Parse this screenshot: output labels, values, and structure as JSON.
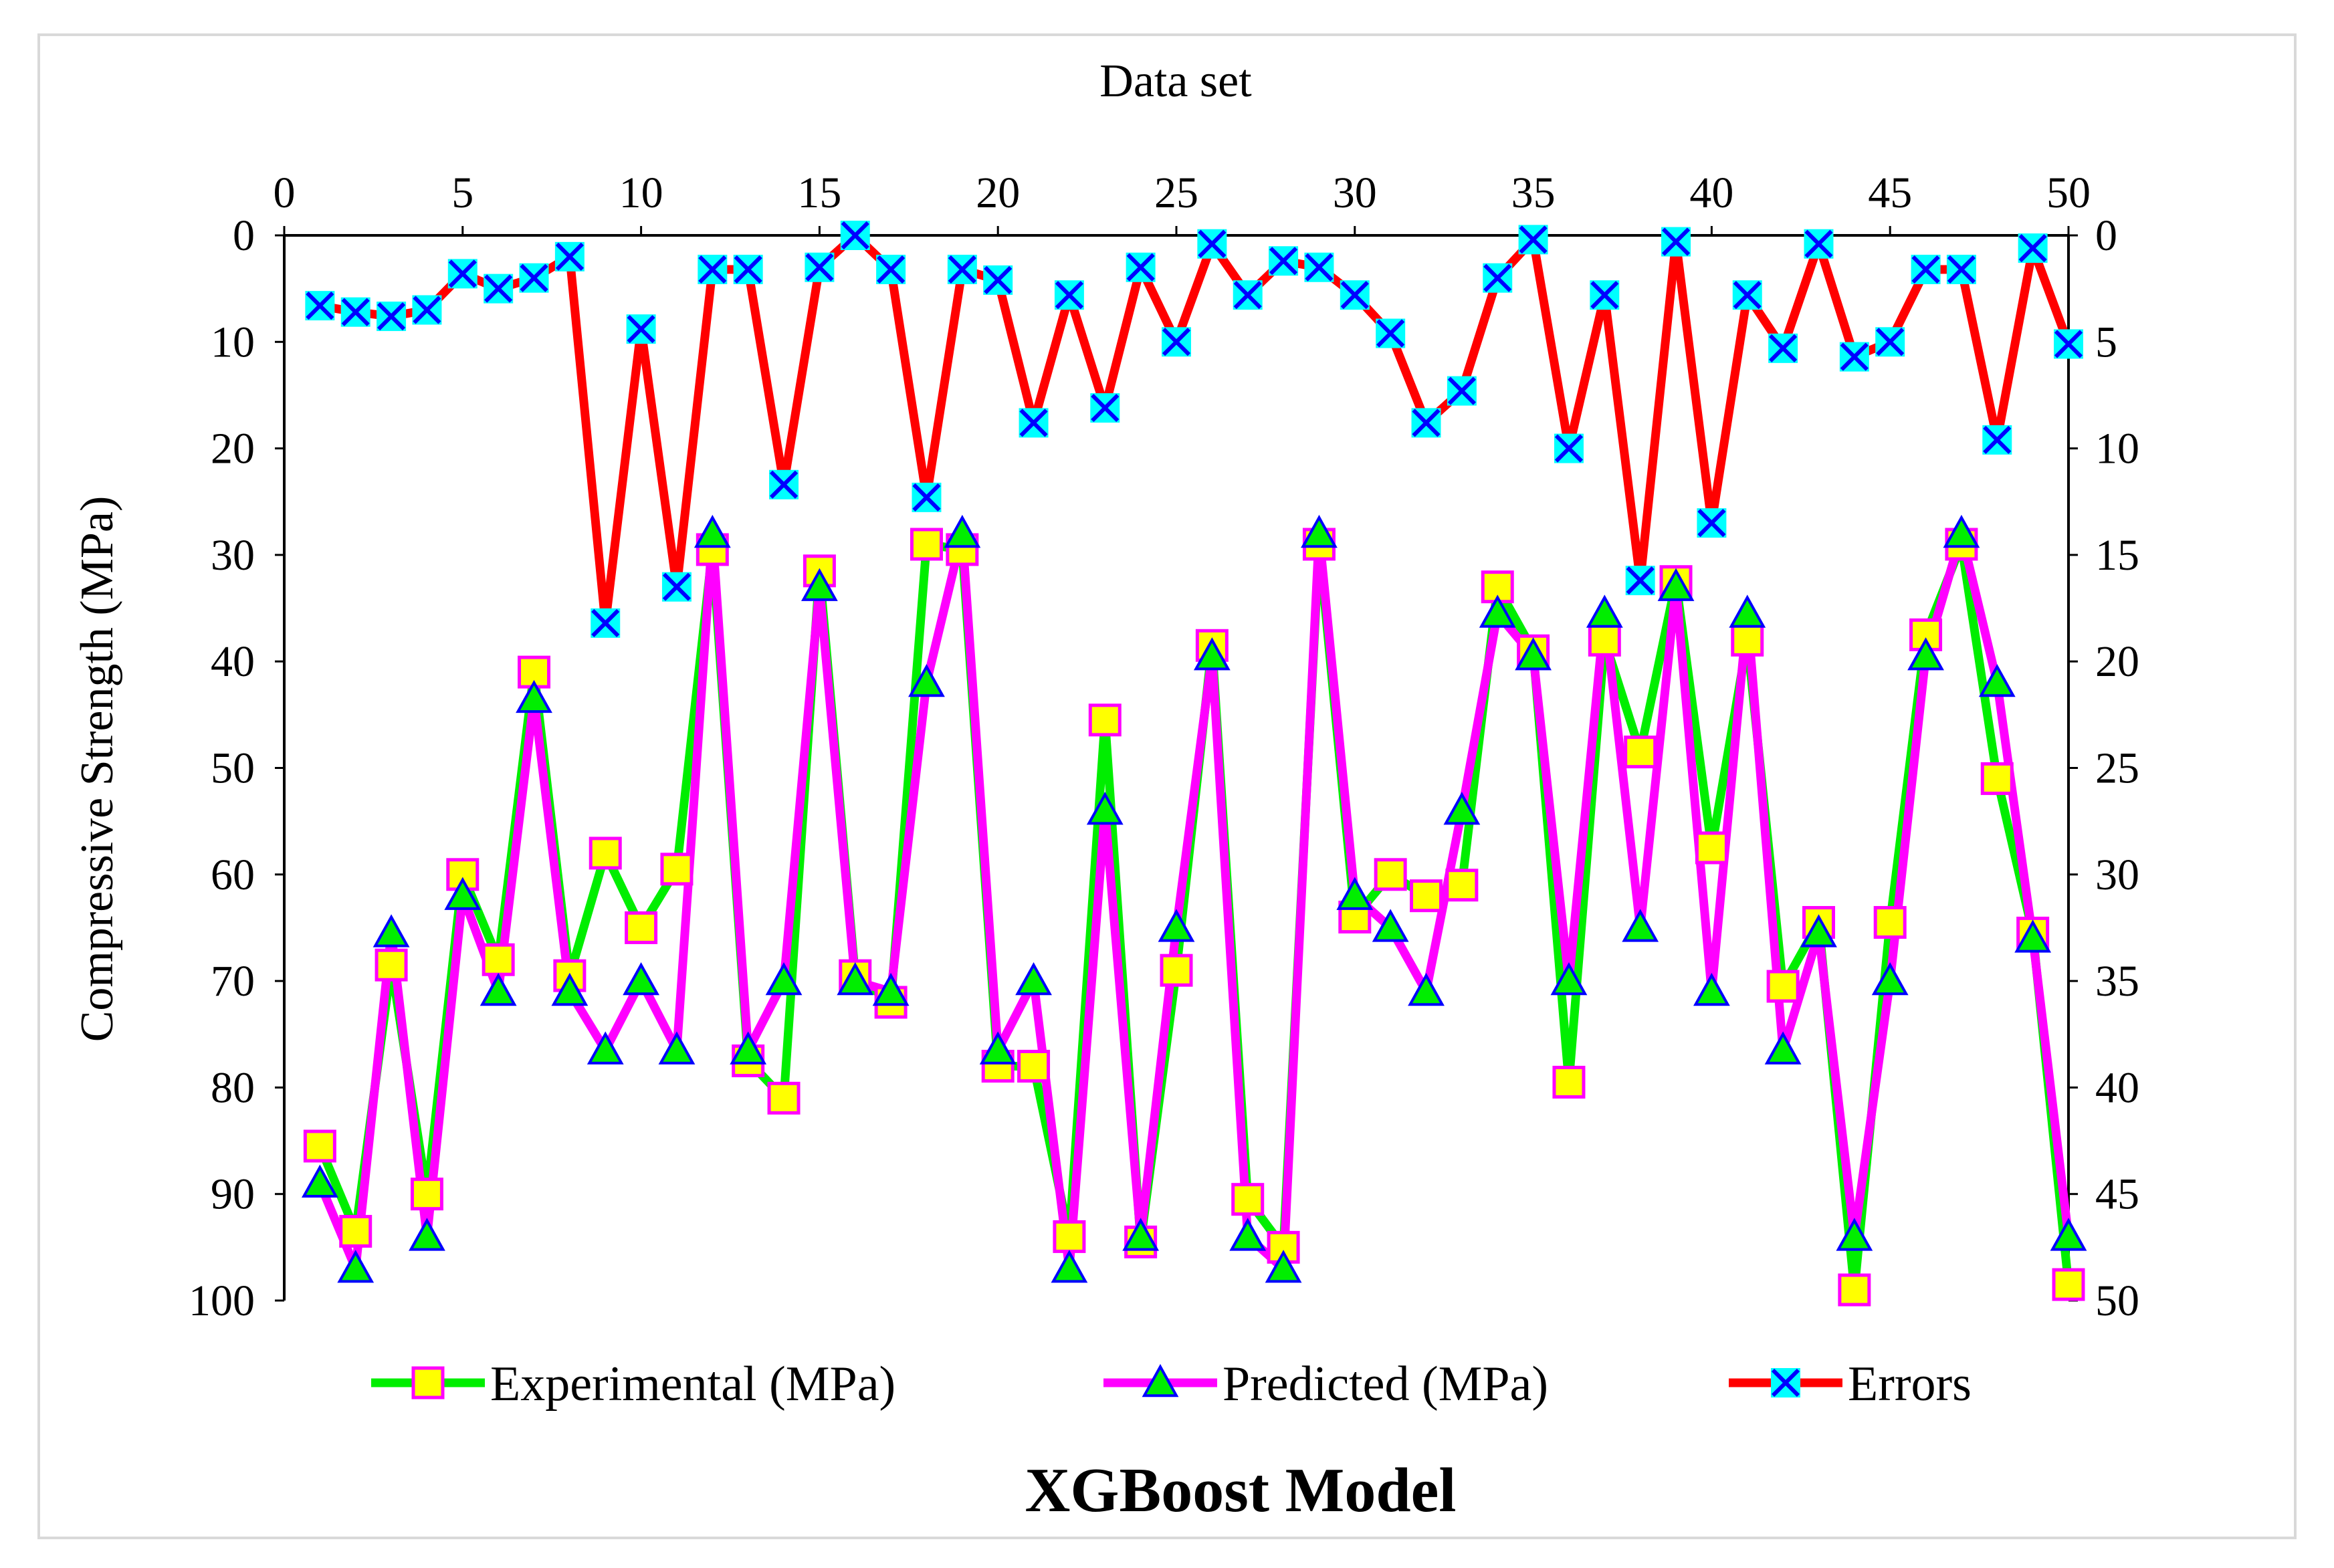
{
  "chart_data": {
    "type": "line",
    "title": "XGBoost Model",
    "x_axis": {
      "label": "Data set",
      "range": [
        0,
        50
      ],
      "ticks": [
        0,
        5,
        10,
        15,
        20,
        25,
        30,
        35,
        40,
        45,
        50
      ],
      "position": "top"
    },
    "y_axis_left": {
      "label": "Compressive Strength (MPa)",
      "range": [
        0,
        100
      ],
      "ticks": [
        0,
        10,
        20,
        30,
        40,
        50,
        60,
        70,
        80,
        90,
        100
      ],
      "inverted": true
    },
    "y_axis_right": {
      "label": "",
      "range": [
        0,
        50
      ],
      "ticks": [
        0,
        5,
        10,
        15,
        20,
        25,
        30,
        35,
        40,
        45,
        50
      ],
      "inverted": true
    },
    "legend_position": "bottom",
    "x": [
      1,
      2,
      3,
      4,
      5,
      6,
      7,
      8,
      9,
      10,
      11,
      12,
      13,
      14,
      15,
      16,
      17,
      18,
      19,
      20,
      21,
      22,
      23,
      24,
      25,
      26,
      27,
      28,
      29,
      30,
      31,
      32,
      33,
      34,
      35,
      36,
      37,
      38,
      39,
      40,
      41,
      42,
      43,
      44,
      45,
      46,
      47,
      48,
      49,
      50
    ],
    "series": [
      {
        "name": "Experimental (MPa)",
        "axis": "left",
        "line_color": "#00ee00",
        "marker": "square",
        "marker_fill": "#ffff00",
        "marker_edge": "#ff00ff",
        "values": [
          85.5,
          93.5,
          68.5,
          90,
          60,
          68,
          41,
          69.5,
          58,
          65,
          59.5,
          29.5,
          77.5,
          81,
          31.5,
          69.5,
          72,
          29,
          29.5,
          78,
          78,
          94,
          45.5,
          94.5,
          69,
          38.5,
          90.5,
          95,
          29,
          64,
          60,
          62,
          61,
          33,
          39,
          79.5,
          38,
          48.5,
          32.5,
          57.5,
          38,
          70.5,
          64.5,
          99,
          64.5,
          37.5,
          29,
          51,
          65.5,
          98.5
        ]
      },
      {
        "name": "Predicted (MPa)",
        "axis": "left",
        "line_color": "#ff00ff",
        "marker": "triangle",
        "marker_fill": "#00ee00",
        "marker_edge": "#0000ff",
        "values": [
          89,
          97,
          65.5,
          94,
          62,
          71,
          43.5,
          71,
          76.5,
          70,
          76.5,
          28,
          76.5,
          70,
          33,
          70,
          71,
          42,
          28,
          76.5,
          70,
          97,
          54,
          94,
          65,
          39.5,
          94,
          97,
          28,
          62,
          65,
          71,
          54,
          35.5,
          39.5,
          70,
          35.5,
          65,
          33,
          71,
          35.5,
          76.5,
          65.5,
          94,
          70,
          39.5,
          28,
          42,
          66,
          94
        ]
      },
      {
        "name": "Errors",
        "axis": "right",
        "line_color": "#ff0000",
        "marker": "x",
        "marker_fill": "#00ffff",
        "marker_edge": "#0000ff",
        "values": [
          3.3,
          3.6,
          3.8,
          3.5,
          1.8,
          2.5,
          2.0,
          1.0,
          18.2,
          4.4,
          16.5,
          1.6,
          1.6,
          11.7,
          1.5,
          0.0,
          1.6,
          12.3,
          1.6,
          2.1,
          8.8,
          2.8,
          8.1,
          1.5,
          5.0,
          0.4,
          2.8,
          1.2,
          1.5,
          2.8,
          4.6,
          8.8,
          7.3,
          2.0,
          0.2,
          10.0,
          2.8,
          16.2,
          0.3,
          13.5,
          2.8,
          5.3,
          0.4,
          5.7,
          5.0,
          1.6,
          1.6,
          9.6,
          0.6,
          5.1
        ]
      }
    ]
  }
}
